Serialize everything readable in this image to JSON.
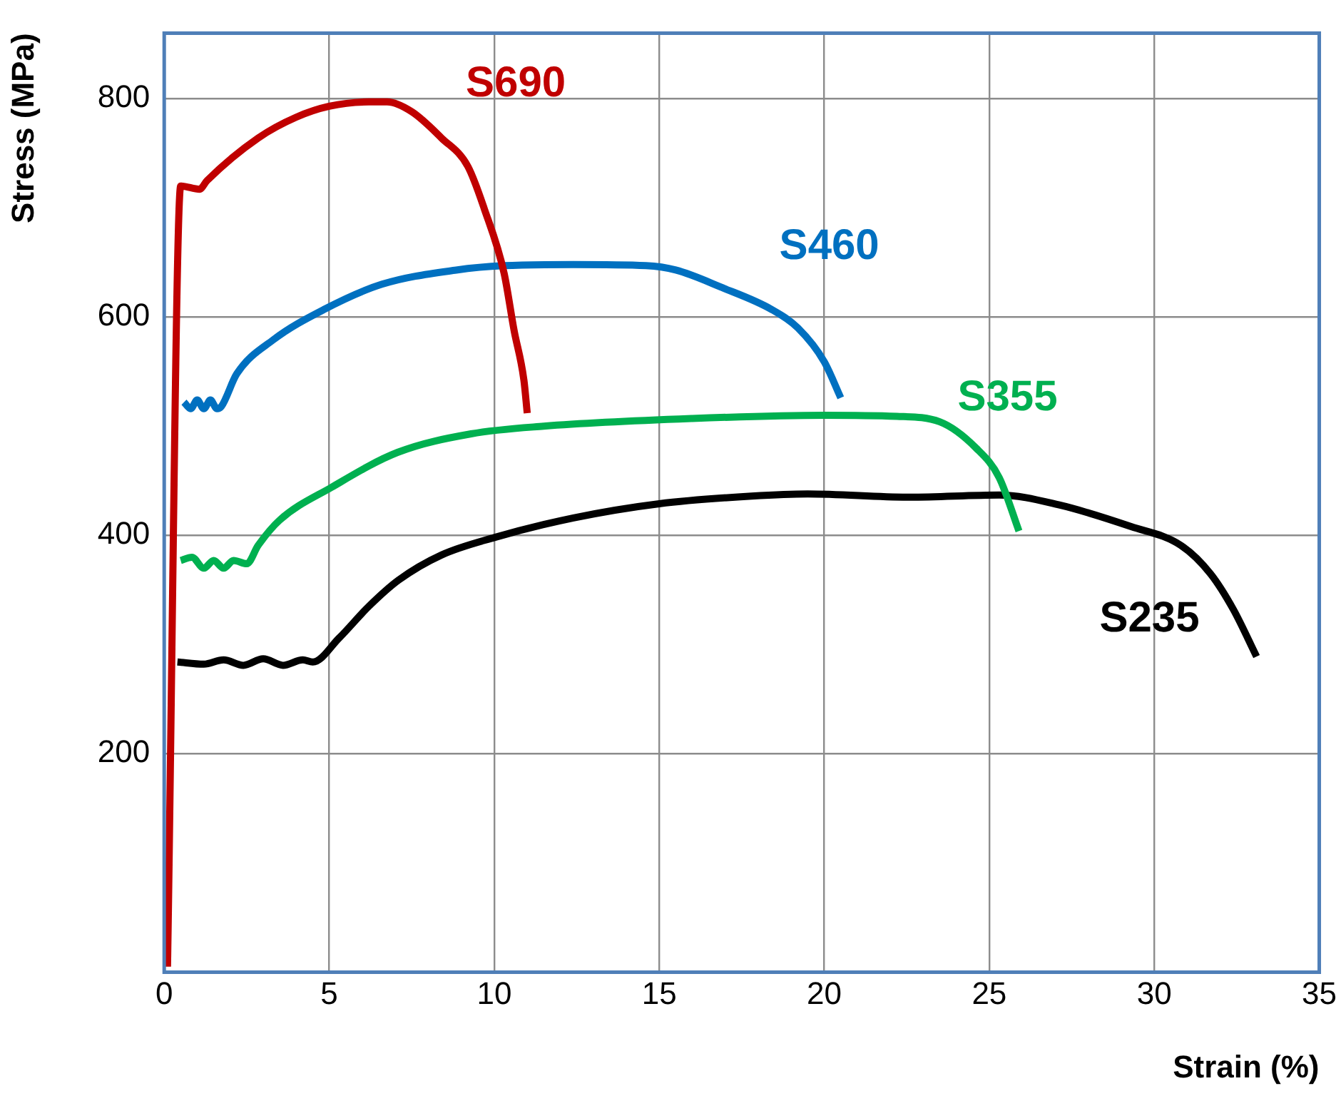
{
  "chart_data": {
    "type": "line",
    "xlabel": "Strain (%)",
    "ylabel": "Stress (MPa)",
    "xlim": [
      0,
      35
    ],
    "xticks": [
      0,
      5,
      10,
      15,
      20,
      25,
      30,
      35
    ],
    "ylim": [
      0,
      860
    ],
    "yticks": [
      200,
      400,
      600,
      800
    ],
    "grid": true,
    "legend": false,
    "marker": "none",
    "line_style": "solid",
    "series": [
      {
        "name": "S690",
        "color": "#c00000",
        "x": [
          0.1,
          0.5,
          1.07,
          1.3,
          2.85,
          4.0,
          5.0,
          6.2,
          6.75,
          7.5,
          8.4,
          9.2,
          9.7,
          10.3,
          10.6,
          10.9,
          11.0
        ],
        "values": [
          5,
          720,
          717,
          725,
          764,
          783,
          793,
          797,
          797,
          788,
          764,
          738,
          699,
          640,
          588,
          542,
          512
        ]
      },
      {
        "name": "S460",
        "color": "#0070c0",
        "x": [
          0.6,
          0.8,
          1.0,
          1.2,
          1.4,
          1.6,
          1.73,
          2.2,
          3.3,
          4.85,
          6.6,
          8.85,
          10.3,
          12.4,
          14.6,
          15.5,
          16.9,
          18.4,
          19.2,
          20.0,
          20.5
        ],
        "values": [
          522,
          516,
          524,
          516,
          524,
          516,
          518,
          548,
          579,
          607,
          630,
          643,
          647,
          648,
          647,
          643,
          627,
          607,
          590,
          559,
          526
        ]
      },
      {
        "name": "S355",
        "color": "#00b050",
        "x": [
          0.5,
          0.84,
          1.2,
          1.5,
          1.8,
          2.1,
          2.5,
          2.85,
          3.5,
          5.07,
          7.07,
          9.3,
          11.5,
          16.0,
          20.0,
          22.2,
          23.5,
          24.6,
          25.3,
          25.9
        ],
        "values": [
          377,
          380,
          370,
          377,
          370,
          377,
          374,
          391,
          414,
          444,
          476,
          493,
          500,
          507,
          510,
          509,
          504,
          480,
          453,
          404
        ]
      },
      {
        "name": "S235",
        "color": "#000000",
        "x": [
          0.4,
          1.2,
          1.8,
          2.4,
          3.0,
          3.6,
          4.2,
          4.5,
          5.3,
          6.2,
          7.1,
          8.4,
          10.0,
          12.4,
          15.0,
          17.8,
          19.5,
          22.6,
          25.3,
          27.1,
          29.3,
          30.8,
          31.7,
          32.4,
          33.1
        ],
        "values": [
          284,
          282,
          286,
          281,
          287,
          281,
          286,
          284,
          306,
          335,
          359,
          382,
          398,
          416,
          429,
          436,
          438,
          435,
          437,
          428,
          408,
          391,
          365,
          332,
          289
        ]
      }
    ]
  }
}
